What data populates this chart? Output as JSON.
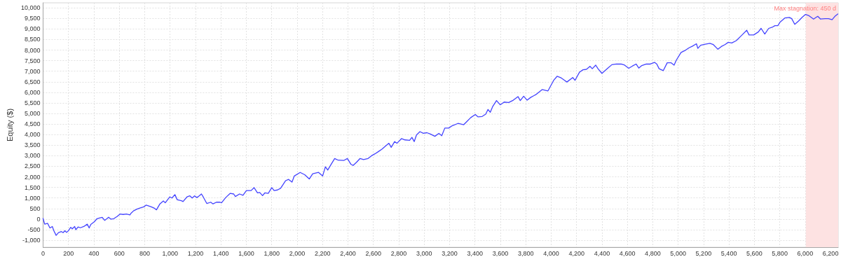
{
  "chart_data": {
    "type": "line",
    "ylabel": "Equity ($)",
    "x": [
      0,
      13,
      36,
      54,
      73,
      85,
      103,
      122,
      145,
      158,
      172,
      185,
      200,
      218,
      230,
      249,
      258,
      276,
      294,
      321,
      348,
      363,
      376,
      403,
      425,
      448,
      466,
      485,
      503,
      516,
      534,
      557,
      584,
      606,
      630,
      657,
      684,
      693,
      712,
      739,
      766,
      793,
      811,
      824,
      848,
      875,
      893,
      920,
      947,
      962,
      998,
      1015,
      1038,
      1056,
      1093,
      1102,
      1133,
      1156,
      1174,
      1193,
      1211,
      1229,
      1247,
      1261,
      1289,
      1320,
      1338,
      1365,
      1393,
      1405,
      1438,
      1474,
      1501,
      1514,
      1547,
      1574,
      1601,
      1638,
      1661,
      1688,
      1706,
      1728,
      1746,
      1773,
      1801,
      1819,
      1846,
      1870,
      1892,
      1910,
      1933,
      1960,
      1978,
      2024,
      2060,
      2096,
      2123,
      2169,
      2201,
      2223,
      2241,
      2269,
      2296,
      2323,
      2369,
      2396,
      2423,
      2441,
      2469,
      2496,
      2523,
      2559,
      2586,
      2613,
      2641,
      2668,
      2695,
      2723,
      2741,
      2768,
      2786,
      2822,
      2849,
      2886,
      2904,
      2922,
      2940,
      2967,
      2994,
      3022,
      3049,
      3085,
      3116,
      3139,
      3163,
      3194,
      3221,
      3267,
      3312,
      3330,
      3366,
      3403,
      3425,
      3457,
      3485,
      3503,
      3521,
      3539,
      3570,
      3599,
      3630,
      3666,
      3702,
      3739,
      3757,
      3784,
      3811,
      3839,
      3884,
      3929,
      3975,
      4020,
      4047,
      4075,
      4106,
      4124,
      4170,
      4188,
      4224,
      4251,
      4278,
      4306,
      4324,
      4351,
      4369,
      4400,
      4442,
      4478,
      4514,
      4551,
      4578,
      4611,
      4641,
      4669,
      4690,
      4714,
      4750,
      4781,
      4814,
      4832,
      4850,
      4883,
      4914,
      4945,
      4968,
      4986,
      5023,
      5059,
      5086,
      5113,
      5144,
      5155,
      5177,
      5213,
      5250,
      5277,
      5313,
      5340,
      5368,
      5395,
      5422,
      5458,
      5495,
      5540,
      5558,
      5595,
      5631,
      5653,
      5682,
      5713,
      5740,
      5762,
      5785,
      5803,
      5840,
      5876,
      5894,
      5918,
      5948,
      5976,
      6003,
      6030,
      6066,
      6099,
      6121,
      6157,
      6184,
      6212,
      6234,
      6257
    ],
    "series": [
      {
        "color": "#4444ff",
        "values": [
          30,
          -240,
          -200,
          -420,
          -350,
          -550,
          -770,
          -640,
          -590,
          -640,
          -550,
          -630,
          -550,
          -390,
          -460,
          -350,
          -500,
          -370,
          -410,
          -350,
          -240,
          -420,
          -250,
          -130,
          20,
          60,
          80,
          -60,
          20,
          90,
          0,
          20,
          130,
          240,
          220,
          240,
          200,
          280,
          390,
          470,
          530,
          580,
          660,
          640,
          590,
          520,
          440,
          720,
          860,
          770,
          1050,
          1000,
          1160,
          920,
          860,
          830,
          1050,
          1100,
          1000,
          1100,
          1020,
          1100,
          1190,
          1050,
          740,
          800,
          720,
          800,
          800,
          770,
          1020,
          1220,
          1190,
          1070,
          1190,
          1130,
          1350,
          1350,
          1490,
          1240,
          1260,
          1110,
          1240,
          1220,
          1490,
          1350,
          1380,
          1460,
          1660,
          1820,
          1880,
          1750,
          2040,
          2210,
          2100,
          1900,
          2150,
          2210,
          2040,
          2480,
          2320,
          2600,
          2870,
          2790,
          2780,
          2870,
          2600,
          2540,
          2700,
          2870,
          2820,
          2870,
          3000,
          3090,
          3200,
          3310,
          3450,
          3590,
          3400,
          3670,
          3590,
          3810,
          3750,
          3730,
          3870,
          3670,
          3980,
          4140,
          4060,
          4090,
          4030,
          3920,
          4060,
          3950,
          4310,
          4310,
          4420,
          4530,
          4470,
          4580,
          4800,
          4950,
          4840,
          4860,
          4970,
          5190,
          5060,
          5320,
          5610,
          5410,
          5540,
          5520,
          5630,
          5800,
          5610,
          5820,
          5630,
          5760,
          5910,
          6130,
          6070,
          6570,
          6760,
          6700,
          6570,
          6490,
          6700,
          6570,
          6960,
          7070,
          7090,
          7230,
          7120,
          7290,
          7120,
          6900,
          7120,
          7310,
          7340,
          7340,
          7290,
          7140,
          7250,
          7340,
          7150,
          7270,
          7340,
          7340,
          7420,
          7340,
          7120,
          7030,
          7400,
          7400,
          7290,
          7530,
          7890,
          8000,
          8110,
          8190,
          8300,
          8080,
          8230,
          8280,
          8320,
          8260,
          8040,
          8170,
          8260,
          8370,
          8340,
          8450,
          8670,
          8940,
          8720,
          8720,
          8860,
          9030,
          8760,
          9030,
          9080,
          9160,
          9160,
          9330,
          9520,
          9550,
          9490,
          9220,
          9380,
          9550,
          9690,
          9630,
          9470,
          9600,
          9470,
          9490,
          9490,
          9440,
          9600,
          9710
        ]
      }
    ],
    "xlim": [
      0,
      6260
    ],
    "xticks": [
      0,
      200,
      400,
      600,
      800,
      {
        "value": 1000,
        "label": "1,000"
      },
      {
        "value": 1200,
        "label": "1,200"
      },
      {
        "value": 1400,
        "label": "1,400"
      },
      {
        "value": 1600,
        "label": "1,600"
      },
      {
        "value": 1800,
        "label": "1,800"
      },
      {
        "value": 2000,
        "label": "2,000"
      },
      {
        "value": 2200,
        "label": "2,200"
      },
      {
        "value": 2400,
        "label": "2,400"
      },
      {
        "value": 2600,
        "label": "2,600"
      },
      {
        "value": 2800,
        "label": "2,800"
      },
      {
        "value": 3000,
        "label": "3,000"
      },
      {
        "value": 3200,
        "label": "3,200"
      },
      {
        "value": 3400,
        "label": "3,400"
      },
      {
        "value": 3600,
        "label": "3,600"
      },
      {
        "value": 3800,
        "label": "3,800"
      },
      {
        "value": 4000,
        "label": "4,000"
      },
      {
        "value": 4200,
        "label": "4,200"
      },
      {
        "value": 4400,
        "label": "4,400"
      },
      {
        "value": 4600,
        "label": "4,600"
      },
      {
        "value": 4800,
        "label": "4,800"
      },
      {
        "value": 5000,
        "label": "5,000"
      },
      {
        "value": 5200,
        "label": "5,200"
      },
      {
        "value": 5400,
        "label": "5,400"
      },
      {
        "value": 5600,
        "label": "5,600"
      },
      {
        "value": 5800,
        "label": "5,800"
      },
      {
        "value": 6000,
        "label": "6,000"
      },
      {
        "value": 6200,
        "label": "6,200"
      }
    ],
    "ylim": [
      -1330,
      10240
    ],
    "yticks": [
      {
        "value": -1000,
        "label": "-1,000"
      },
      -500,
      0,
      500,
      {
        "value": 1000,
        "label": "1,000"
      },
      {
        "value": 1500,
        "label": "1,500"
      },
      {
        "value": 2000,
        "label": "2,000"
      },
      {
        "value": 2500,
        "label": "2,500"
      },
      {
        "value": 3000,
        "label": "3,000"
      },
      {
        "value": 3500,
        "label": "3,500"
      },
      {
        "value": 4000,
        "label": "4,000"
      },
      {
        "value": 4500,
        "label": "4,500"
      },
      {
        "value": 5000,
        "label": "5,000"
      },
      {
        "value": 5500,
        "label": "5,500"
      },
      {
        "value": 6000,
        "label": "6,000"
      },
      {
        "value": 6500,
        "label": "6,500"
      },
      {
        "value": 7000,
        "label": "7,000"
      },
      {
        "value": 7500,
        "label": "7,500"
      },
      {
        "value": 8000,
        "label": "8,000"
      },
      {
        "value": 8500,
        "label": "8,500"
      },
      {
        "value": 9000,
        "label": "9,000"
      },
      {
        "value": 9500,
        "label": "9,500"
      },
      {
        "value": 10000,
        "label": "10,000"
      }
    ],
    "grid": true,
    "marker": "none",
    "line_style": "solid",
    "bands": [
      {
        "axis": "x",
        "from": 6005,
        "to": 6260,
        "label": "Max stagnation: 450 d",
        "color": "#fde2e2"
      }
    ]
  }
}
